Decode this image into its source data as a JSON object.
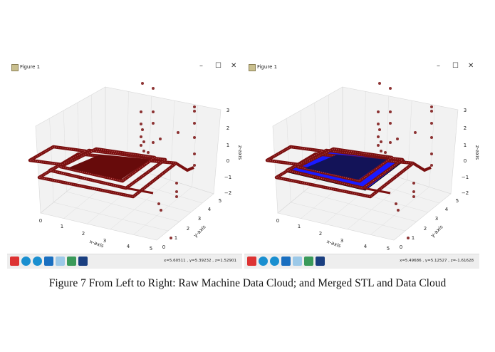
{
  "windows": [
    {
      "title": "Figure 1",
      "variant": "raw",
      "coords": "x=5.60511    , y=5.39232    , z=1.52901"
    },
    {
      "title": "Figure 1",
      "variant": "merged",
      "coords": "x=5.49686    , y=5.12527    , z=-1.61628"
    }
  ],
  "window_controls": {
    "minimize": "–",
    "maximize": "☐",
    "close": "✕"
  },
  "axes": {
    "x_label": "x-axis",
    "y_label": "y-axis",
    "z_label": "z-axis",
    "x_ticks": [
      "0",
      "1",
      "2",
      "3",
      "4",
      "5"
    ],
    "y_ticks": [
      "0",
      "1",
      "2",
      "3",
      "4",
      "5"
    ],
    "z_ticks": [
      "3",
      "2",
      "1",
      "0",
      "−1",
      "−2"
    ]
  },
  "toolbar_icons": [
    "home-icon",
    "back-icon",
    "forward-icon",
    "pan-icon",
    "zoom-icon",
    "configure-icon",
    "save-icon"
  ],
  "colors": {
    "points": "#7a1010",
    "stl": "#1a1aff",
    "toolbar": "#eeeeee"
  },
  "caption": "Figure 7 From Left to Right: Raw Machine Data Cloud; and Merged STL and Data Cloud"
}
